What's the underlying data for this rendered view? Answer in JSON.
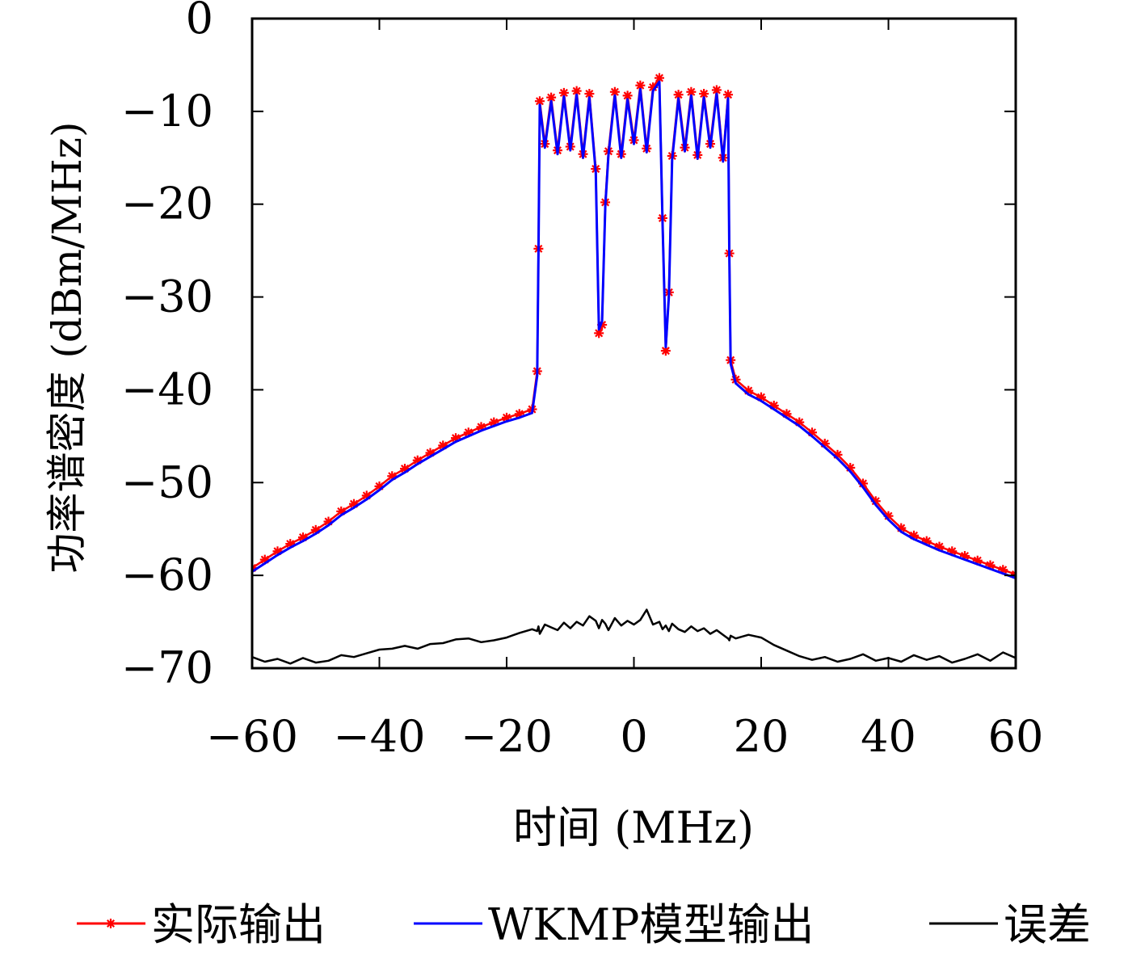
{
  "chart_data": {
    "type": "line",
    "title": "",
    "xlabel": "时间 (MHz)",
    "ylabel": "功率谱密度 (dBm/MHz)",
    "xlim": [
      -60,
      60
    ],
    "ylim": [
      -70,
      0
    ],
    "x_ticks": [
      -60,
      -40,
      -20,
      0,
      20,
      40,
      60
    ],
    "y_ticks": [
      0,
      -10,
      -20,
      -30,
      -40,
      -50,
      -60,
      -70
    ],
    "x_tick_labels": [
      "−60",
      "−40",
      "−20",
      "0",
      "20",
      "40",
      "60"
    ],
    "y_tick_labels": [
      "0",
      "−10",
      "−20",
      "−30",
      "−40",
      "−50",
      "−60",
      "−70"
    ],
    "grid": false,
    "legend_position": "bottom",
    "x": [
      -60,
      -58,
      -56,
      -54,
      -52,
      -50,
      -48,
      -46,
      -44,
      -42,
      -40,
      -38,
      -36,
      -34,
      -32,
      -30,
      -28,
      -26,
      -24,
      -22,
      -20,
      -18,
      -16,
      -15.2,
      -15,
      -14.8,
      -14,
      -13,
      -12,
      -11,
      -10,
      -9,
      -8,
      -7,
      -6,
      -5.5,
      -5,
      -4.5,
      -4,
      -3,
      -2,
      -1,
      0,
      1,
      2,
      3,
      4,
      4.5,
      5,
      5.5,
      6,
      7,
      8,
      9,
      10,
      11,
      12,
      13,
      14,
      14.8,
      15,
      15.2,
      16,
      18,
      20,
      22,
      24,
      26,
      28,
      30,
      32,
      34,
      36,
      38,
      40,
      42,
      44,
      46,
      48,
      50,
      52,
      54,
      56,
      58,
      60
    ],
    "series": [
      {
        "name": "实际输出",
        "color": "#ff0000",
        "marker": "asterisk",
        "values": [
          -59.2,
          -58.3,
          -57.4,
          -56.6,
          -55.9,
          -55.1,
          -54.2,
          -53.1,
          -52.3,
          -51.4,
          -50.4,
          -49.3,
          -48.5,
          -47.6,
          -46.8,
          -46.0,
          -45.2,
          -44.6,
          -44.0,
          -43.5,
          -43.0,
          -42.6,
          -42.1,
          -38.0,
          -24.8,
          -8.9,
          -13.5,
          -8.5,
          -14.2,
          -8.0,
          -13.8,
          -7.8,
          -14.6,
          -8.1,
          -16.2,
          -33.9,
          -33.0,
          -19.8,
          -14.3,
          -7.9,
          -14.6,
          -8.3,
          -13.1,
          -7.2,
          -14.0,
          -7.4,
          -6.4,
          -21.5,
          -35.8,
          -29.5,
          -14.8,
          -8.2,
          -13.9,
          -7.9,
          -14.7,
          -8.1,
          -13.5,
          -7.7,
          -15.0,
          -8.2,
          -25.3,
          -36.8,
          -38.9,
          -40.1,
          -40.8,
          -41.7,
          -42.6,
          -43.5,
          -44.6,
          -45.8,
          -47.0,
          -48.4,
          -50.1,
          -52.0,
          -53.6,
          -54.9,
          -55.7,
          -56.3,
          -56.9,
          -57.4,
          -57.9,
          -58.4,
          -58.9,
          -59.4,
          -59.9
        ]
      },
      {
        "name": "WKMP模型输出",
        "color": "#0000ff",
        "values": [
          -59.6,
          -58.7,
          -57.8,
          -57.0,
          -56.3,
          -55.5,
          -54.6,
          -53.5,
          -52.7,
          -51.8,
          -50.8,
          -49.7,
          -48.9,
          -48.0,
          -47.2,
          -46.4,
          -45.6,
          -45.0,
          -44.4,
          -43.9,
          -43.4,
          -43.0,
          -42.5,
          -38.5,
          -25.2,
          -9.3,
          -13.9,
          -8.9,
          -14.6,
          -8.4,
          -14.2,
          -8.2,
          -15.0,
          -8.5,
          -16.6,
          -33.5,
          -32.6,
          -20.2,
          -14.7,
          -8.3,
          -15.0,
          -8.7,
          -13.5,
          -7.6,
          -14.4,
          -7.8,
          -6.8,
          -21.9,
          -35.4,
          -29.9,
          -15.2,
          -8.6,
          -14.3,
          -8.3,
          -15.1,
          -8.5,
          -13.9,
          -8.1,
          -15.4,
          -8.6,
          -25.7,
          -37.2,
          -39.3,
          -40.5,
          -41.2,
          -42.1,
          -43.0,
          -43.9,
          -45.0,
          -46.2,
          -47.4,
          -48.8,
          -50.5,
          -52.4,
          -54.0,
          -55.3,
          -56.1,
          -56.7,
          -57.3,
          -57.8,
          -58.3,
          -58.8,
          -59.3,
          -59.8,
          -60.3
        ]
      },
      {
        "name": "误差",
        "color": "#000000",
        "values": [
          -68.8,
          -69.3,
          -69.0,
          -69.5,
          -68.9,
          -69.4,
          -69.2,
          -68.6,
          -68.8,
          -68.4,
          -68.0,
          -67.9,
          -67.6,
          -67.9,
          -67.4,
          -67.3,
          -66.9,
          -66.8,
          -67.2,
          -67.0,
          -66.7,
          -66.2,
          -65.8,
          -66.0,
          -65.5,
          -66.3,
          -65.3,
          -65.6,
          -65.9,
          -65.1,
          -65.7,
          -65.0,
          -65.4,
          -64.4,
          -64.9,
          -65.7,
          -64.8,
          -65.2,
          -65.9,
          -64.6,
          -65.4,
          -64.9,
          -65.3,
          -64.8,
          -63.7,
          -65.3,
          -65.0,
          -65.8,
          -65.4,
          -66.0,
          -65.2,
          -65.8,
          -66.1,
          -65.5,
          -66.0,
          -65.7,
          -66.3,
          -65.9,
          -66.4,
          -66.8,
          -67.0,
          -66.5,
          -66.8,
          -66.4,
          -66.7,
          -67.5,
          -68.1,
          -68.7,
          -69.1,
          -68.8,
          -69.3,
          -69.0,
          -68.5,
          -69.2,
          -68.9,
          -69.3,
          -68.6,
          -69.1,
          -68.7,
          -69.4,
          -69.0,
          -68.5,
          -69.2,
          -68.3,
          -68.9
        ]
      }
    ]
  }
}
